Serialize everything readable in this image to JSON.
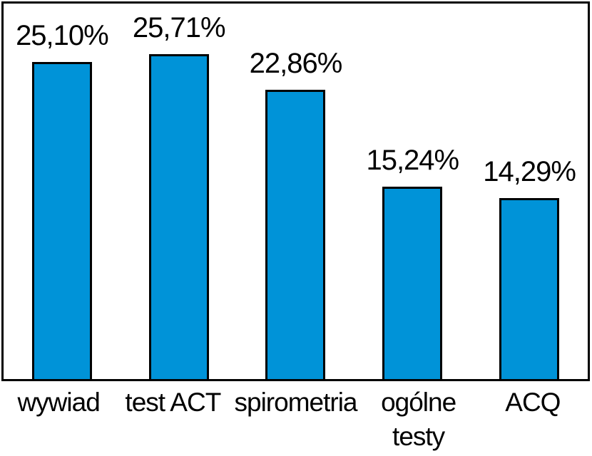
{
  "chart_data": {
    "type": "bar",
    "categories": [
      "wywiad",
      "test ACT",
      "spirometria",
      "ogólne testy",
      "ACQ"
    ],
    "values": [
      25.1,
      25.71,
      22.86,
      15.24,
      14.29
    ],
    "value_labels": [
      "25,10%",
      "25,71%",
      "22,86%",
      "15,24%",
      "14,29%"
    ],
    "title": "",
    "xlabel": "",
    "ylabel": "",
    "ylim": [
      0,
      29.7
    ],
    "grid": false,
    "legend": null,
    "value_label_position": "above-bar",
    "frame": true
  },
  "colors": {
    "background": "#ffffff",
    "bar_fill": "#0093D8",
    "bar_border": "#000000",
    "frame_border": "#000000",
    "text": "#000000"
  }
}
